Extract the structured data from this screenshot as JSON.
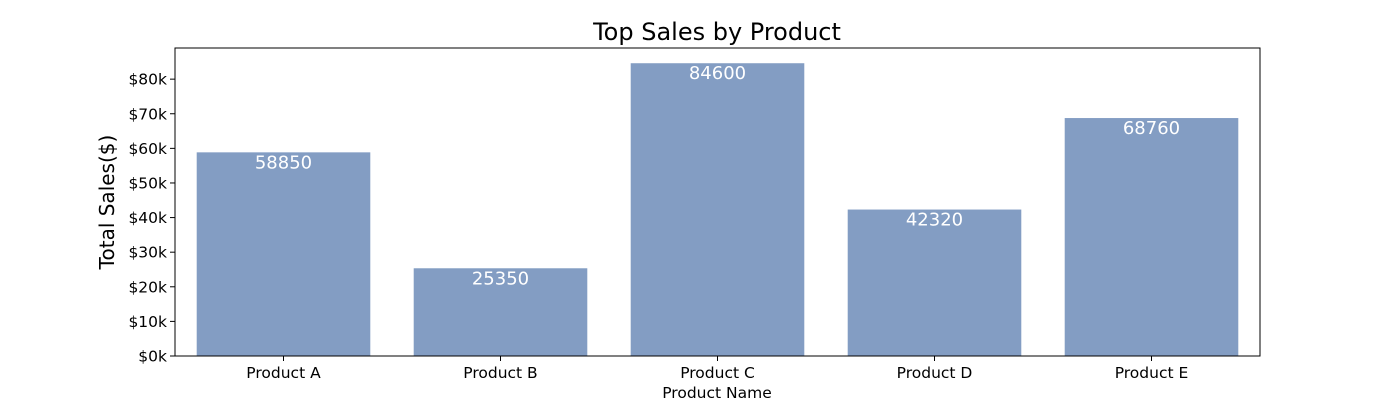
{
  "chart_data": {
    "type": "bar",
    "title": "Top Sales by Product",
    "xlabel": "Product Name",
    "ylabel": "Total Sales($)",
    "categories": [
      "Product A",
      "Product B",
      "Product C",
      "Product D",
      "Product E"
    ],
    "values": [
      58850,
      25350,
      84600,
      42320,
      68760
    ],
    "data_labels": [
      "58850",
      "25350",
      "84600",
      "42320",
      "68760"
    ],
    "ylim": [
      0,
      89000
    ],
    "y_ticks": [
      0,
      10000,
      20000,
      30000,
      40000,
      50000,
      60000,
      70000,
      80000
    ],
    "y_tick_labels": [
      "$0k",
      "$10k",
      "$20k",
      "$30k",
      "$40k",
      "$50k",
      "$60k",
      "$70k",
      "$80k"
    ],
    "grid": false,
    "legend": "none",
    "bar_color": "#839dc3"
  }
}
